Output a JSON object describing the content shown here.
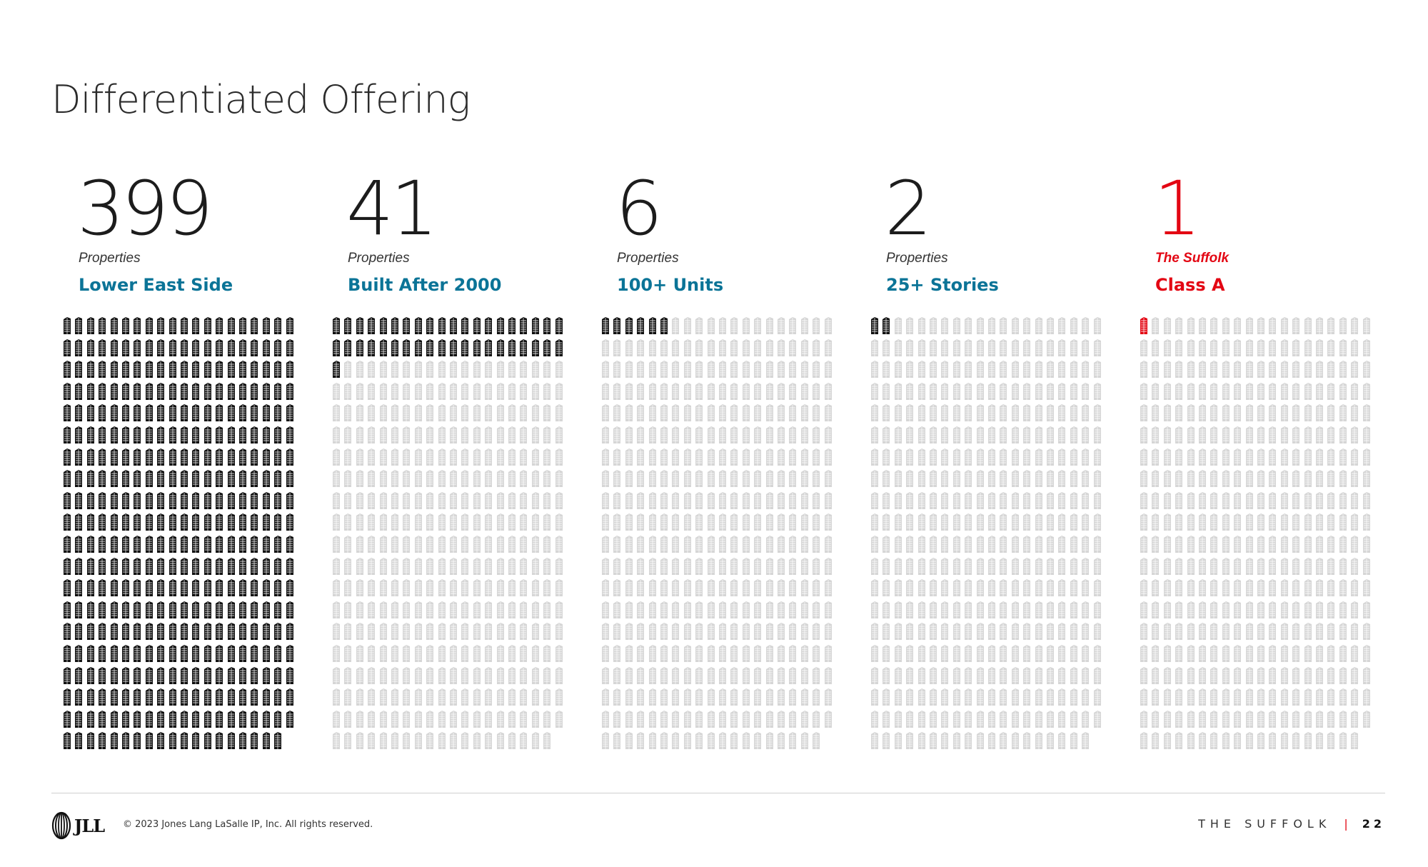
{
  "title": "Differentiated Offering",
  "colors": {
    "accent": "#0b7497",
    "highlight": "#e30613",
    "filled": "#111111",
    "empty": "#d6d6d6"
  },
  "icon": "building-icon",
  "grid": {
    "columns": 20,
    "rows": 20,
    "total_icons": 399
  },
  "stats": [
    {
      "number": "399",
      "subtitle": "Properties",
      "label": "Lower East Side",
      "filled": 399,
      "highlight": false
    },
    {
      "number": "41",
      "subtitle": "Properties",
      "label": "Built After 2000",
      "filled": 41,
      "highlight": false
    },
    {
      "number": "6",
      "subtitle": "Properties",
      "label": "100+ Units",
      "filled": 6,
      "highlight": false
    },
    {
      "number": "2",
      "subtitle": "Properties",
      "label": "25+ Stories",
      "filled": 2,
      "highlight": false
    },
    {
      "number": "1",
      "subtitle": "The Suffolk",
      "label": "Class A",
      "filled": 1,
      "highlight": true
    }
  ],
  "footer": {
    "logo_text": "JLL",
    "copyright": "© 2023 Jones Lang LaSalle IP, Inc. All rights reserved.",
    "document_name": "THE SUFFOLK",
    "separator": "|",
    "page_number": "22"
  }
}
